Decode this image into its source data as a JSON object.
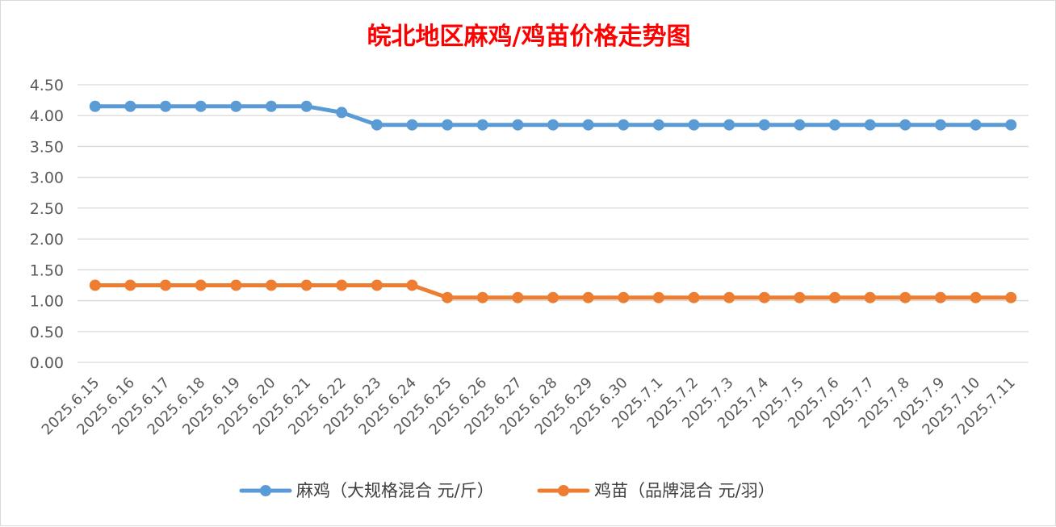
{
  "chart_data": {
    "type": "line",
    "title": "皖北地区麻鸡/鸡苗价格走势图",
    "xlabel": "",
    "ylabel": "",
    "categories": [
      "2025.6.15",
      "2025.6.16",
      "2025.6.17",
      "2025.6.18",
      "2025.6.19",
      "2025.6.20",
      "2025.6.21",
      "2025.6.22",
      "2025.6.23",
      "2025.6.24",
      "2025.6.25",
      "2025.6.26",
      "2025.6.27",
      "2025.6.28",
      "2025.6.29",
      "2025.6.30",
      "2025.7.1",
      "2025.7.2",
      "2025.7.3",
      "2025.7.4",
      "2025.7.5",
      "2025.7.6",
      "2025.7.7",
      "2025.7.8",
      "2025.7.9",
      "2025.7.10",
      "2025.7.11"
    ],
    "yticks": [
      "0.00",
      "0.50",
      "1.00",
      "1.50",
      "2.00",
      "2.50",
      "3.00",
      "3.50",
      "4.00",
      "4.50"
    ],
    "ylim": [
      0,
      4.5
    ],
    "grid": true,
    "legend_position": "bottom",
    "series": [
      {
        "name": "麻鸡（大规格混合 元/斤）",
        "color": "#5b9bd5",
        "values": [
          4.15,
          4.15,
          4.15,
          4.15,
          4.15,
          4.15,
          4.15,
          4.05,
          3.85,
          3.85,
          3.85,
          3.85,
          3.85,
          3.85,
          3.85,
          3.85,
          3.85,
          3.85,
          3.85,
          3.85,
          3.85,
          3.85,
          3.85,
          3.85,
          3.85,
          3.85,
          3.85
        ]
      },
      {
        "name": "鸡苗（品牌混合 元/羽）",
        "color": "#ed7d31",
        "values": [
          1.25,
          1.25,
          1.25,
          1.25,
          1.25,
          1.25,
          1.25,
          1.25,
          1.25,
          1.25,
          1.05,
          1.05,
          1.05,
          1.05,
          1.05,
          1.05,
          1.05,
          1.05,
          1.05,
          1.05,
          1.05,
          1.05,
          1.05,
          1.05,
          1.05,
          1.05,
          1.05
        ]
      }
    ]
  }
}
